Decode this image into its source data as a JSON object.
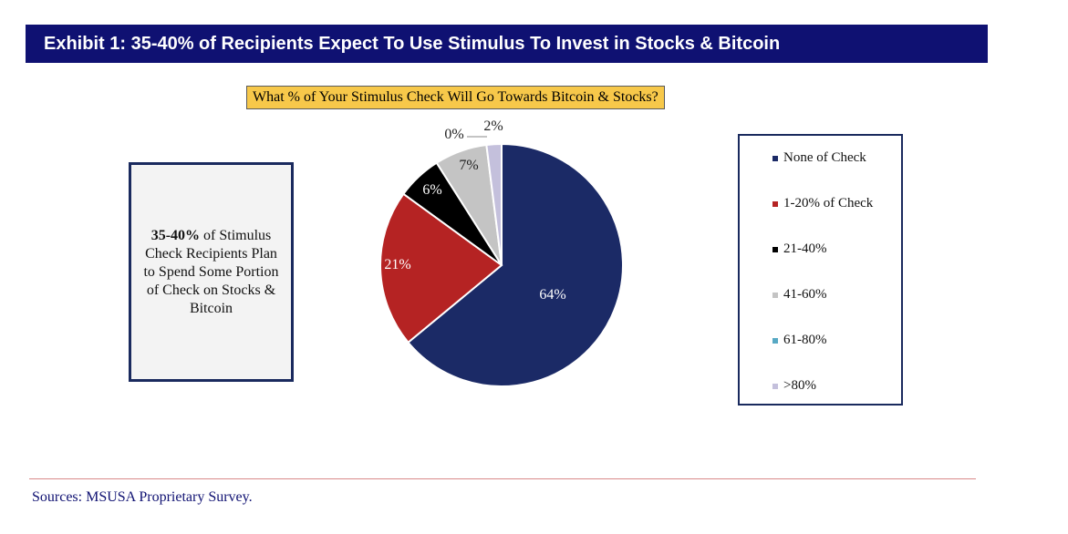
{
  "header": {
    "title": "Exhibit 1: 35-40% of Recipients Expect To Use Stimulus To Invest in Stocks & Bitcoin"
  },
  "callout": {
    "bold": "35-40%",
    "text": " of Stimulus Check Recipients Plan to Spend Some Portion of Check on Stocks & Bitcoin"
  },
  "source": "Sources: MSUSA Proprietary Survey.",
  "chart_data": {
    "type": "pie",
    "title": "What % of Your Stimulus Check Will Go Towards Bitcoin & Stocks?",
    "legend_position": "right",
    "slices": [
      {
        "label": "None of Check",
        "value": 64,
        "display": "64%",
        "color": "#1b2a66"
      },
      {
        "label": "1-20% of Check",
        "value": 21,
        "display": "21%",
        "color": "#b52323"
      },
      {
        "label": "21-40%",
        "value": 6,
        "display": "6%",
        "color": "#000000"
      },
      {
        "label": "41-60%",
        "value": 7,
        "display": "7%",
        "color": "#c4c4c4"
      },
      {
        "label": "61-80%",
        "value": 0,
        "display": "0%",
        "color": "#57a9c4"
      },
      {
        "label": ">80%",
        "value": 2,
        "display": "2%",
        "color": "#c4c0dc"
      }
    ]
  }
}
